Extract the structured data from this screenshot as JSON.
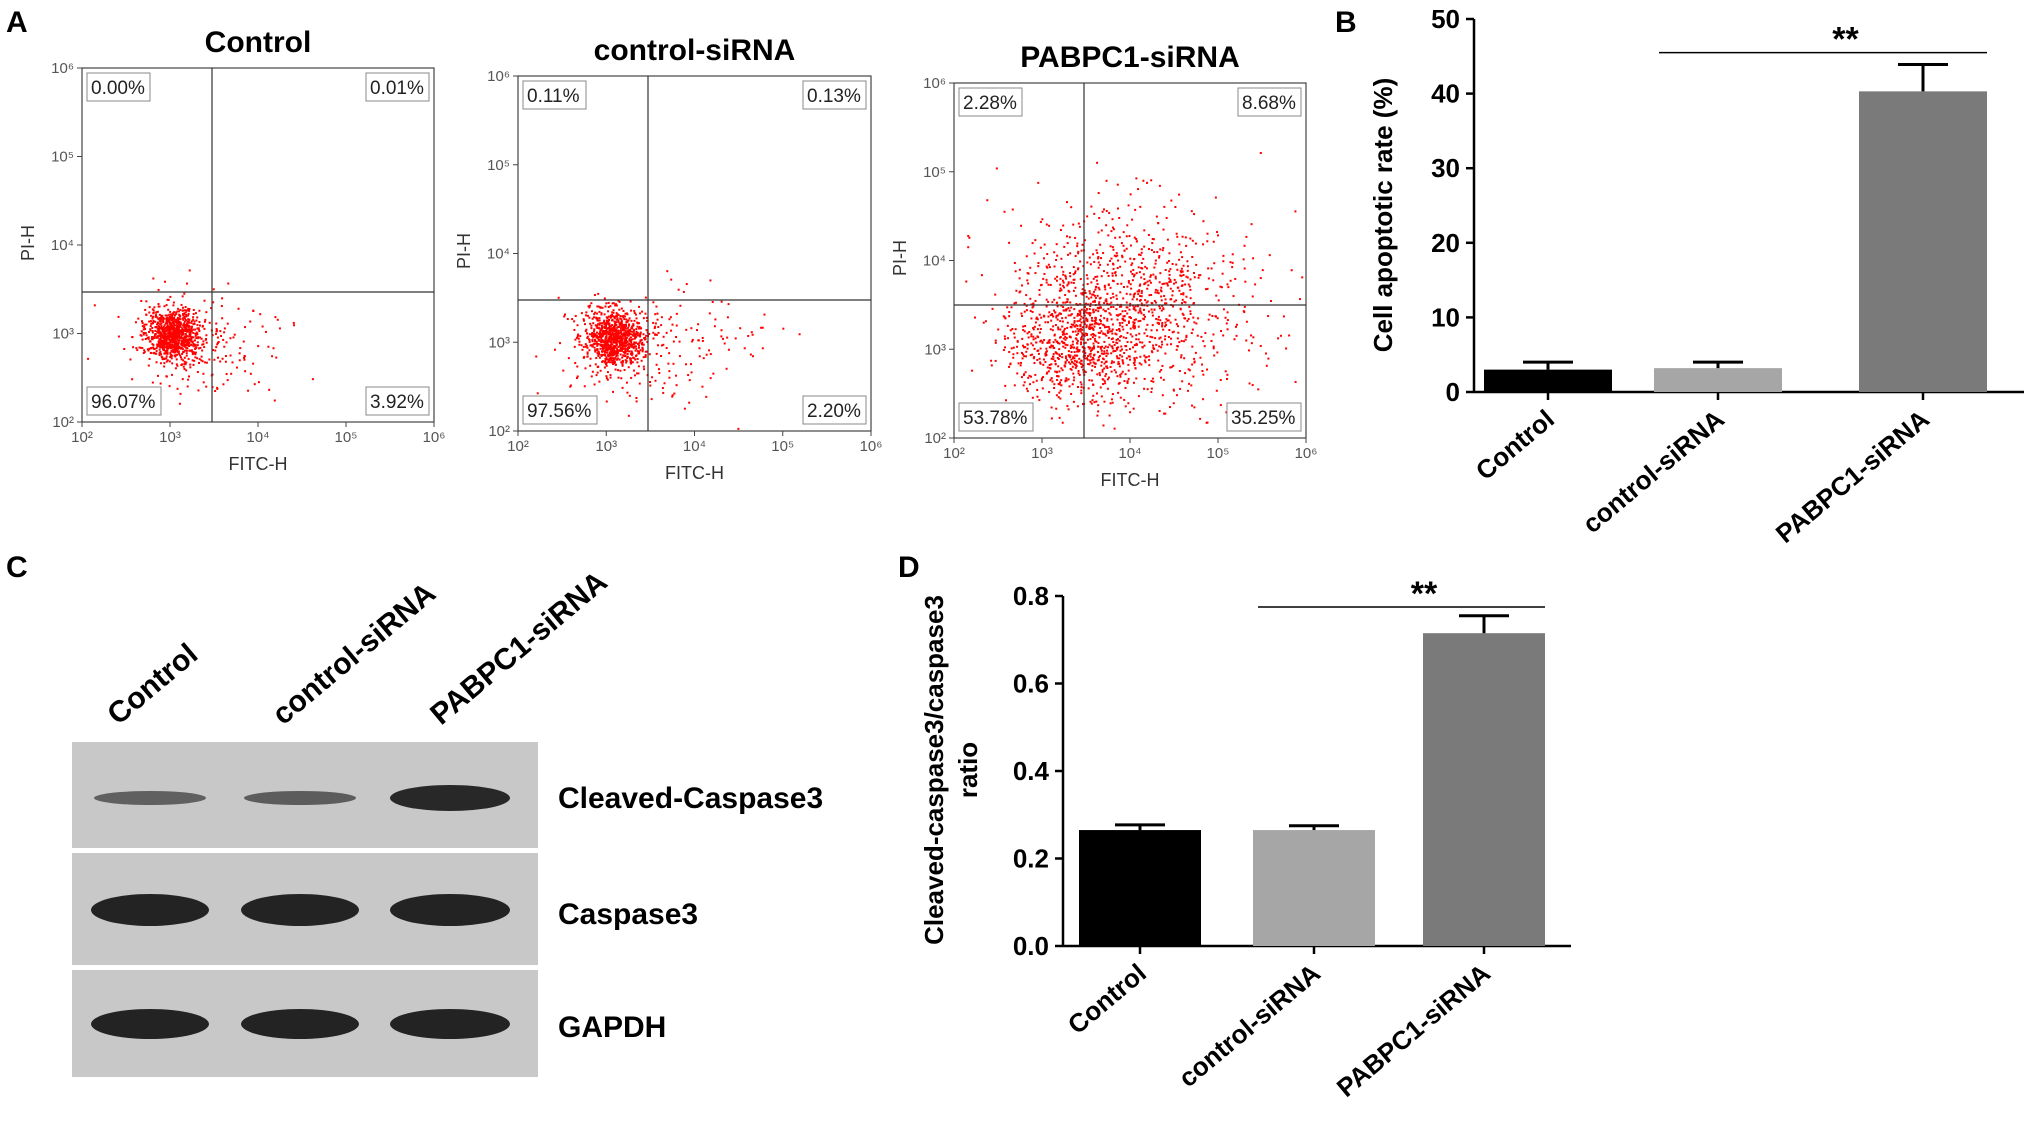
{
  "panels": {
    "a": "A",
    "b": "B",
    "c": "C",
    "d": "D"
  },
  "flow": {
    "x_label": "FITC-H",
    "y_label": "PI-H",
    "y_ticks": [
      "10²",
      "10³",
      "10⁴",
      "10⁵",
      "10⁶"
    ],
    "x_ticks": [
      "10²",
      "10³",
      "10⁴",
      "10⁵",
      "10⁶"
    ],
    "dot_color": "#ff0000",
    "plots": [
      {
        "title": "Control",
        "ul": "0.00%",
        "ur": "0.01%",
        "ll": "96.07%",
        "lr": "3.92%"
      },
      {
        "title": "control-siRNA",
        "ul": "0.11%",
        "ur": "0.13%",
        "ll": "97.56%",
        "lr": "2.20%"
      },
      {
        "title": "PABPC1-siRNA",
        "ul": "2.28%",
        "ur": "8.68%",
        "ll": "53.78%",
        "lr": "35.25%"
      }
    ]
  },
  "chart_data": [
    {
      "type": "bar",
      "panel": "B",
      "categories": [
        "Control",
        "control-siRNA",
        "PABPC1-siRNA"
      ],
      "values": [
        3.0,
        3.2,
        40.3
      ],
      "errors": [
        1.0,
        0.8,
        3.6
      ],
      "colors": [
        "#000000",
        "#a6a6a6",
        "#7a7a7a"
      ],
      "ylabel": "Cell apoptotic rate (%)",
      "ylim": [
        0,
        50
      ],
      "yticks": [
        "0",
        "10",
        "20",
        "30",
        "40",
        "50"
      ],
      "significance": "**"
    },
    {
      "type": "bar",
      "panel": "D",
      "categories": [
        "Control",
        "control-siRNA",
        "PABPC1-siRNA"
      ],
      "values": [
        0.265,
        0.265,
        0.715
      ],
      "errors": [
        0.012,
        0.01,
        0.04
      ],
      "colors": [
        "#000000",
        "#a6a6a6",
        "#7a7a7a"
      ],
      "ylabel_line1": "Cleaved-caspase3/caspase3",
      "ylabel_line2": "ratio",
      "ylim": [
        0,
        0.8
      ],
      "yticks": [
        "0.0",
        "0.2",
        "0.4",
        "0.6",
        "0.8"
      ],
      "significance": "**"
    }
  ],
  "western": {
    "lanes": [
      "Control",
      "control-siRNA",
      "PABPC1-siRNA"
    ],
    "rows": [
      "Cleaved-Caspase3",
      "Caspase3",
      "GAPDH"
    ]
  }
}
